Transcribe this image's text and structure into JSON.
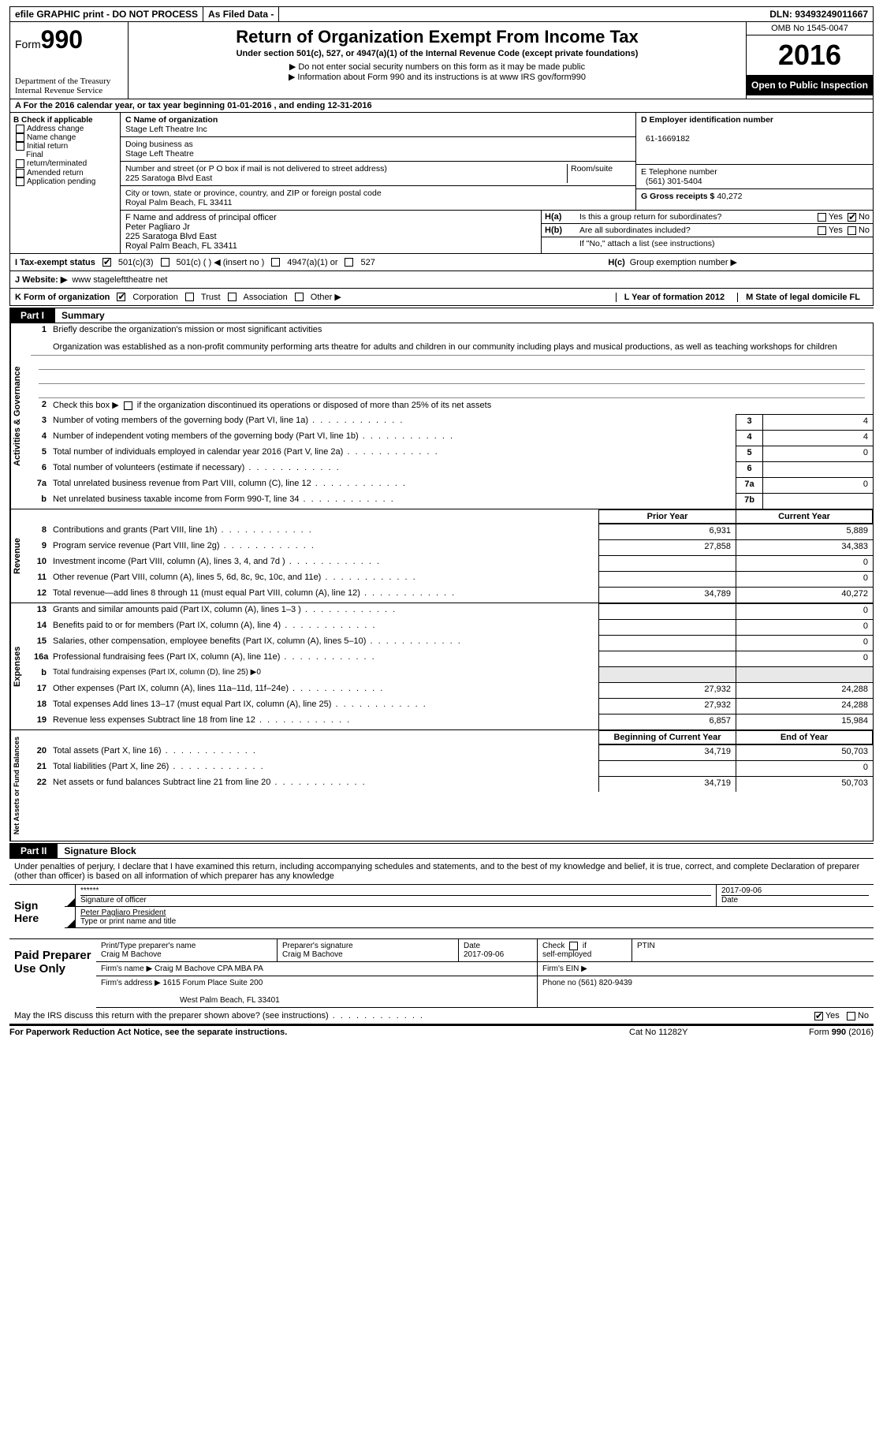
{
  "topbar": {
    "efile": "efile GRAPHIC print - DO NOT PROCESS",
    "asfiled": "As Filed Data -",
    "dln_label": "DLN:",
    "dln": "93493249011667"
  },
  "header": {
    "form_word": "Form",
    "form_num": "990",
    "dept1": "Department of the Treasury",
    "dept2": "Internal Revenue Service",
    "title": "Return of Organization Exempt From Income Tax",
    "subtitle": "Under section 501(c), 527, or 4947(a)(1) of the Internal Revenue Code (except private foundations)",
    "note1": "Do not enter social security numbers on this form as it may be made public",
    "note2": "Information about Form 990 and its instructions is at ",
    "url": "www IRS gov/form990",
    "omb": "OMB No  1545-0047",
    "year": "2016",
    "open": "Open to Public Inspection"
  },
  "rowA": "A   For the 2016 calendar year, or tax year beginning 01-01-2016    , and ending 12-31-2016",
  "colB": {
    "head": "B Check if applicable",
    "items": [
      "Address change",
      "Name change",
      "Initial return",
      "Final return/terminated",
      "Amended return",
      "Application pending"
    ]
  },
  "boxC": {
    "label": "C Name of organization",
    "name": "Stage Left Theatre Inc",
    "dba_label": "Doing business as",
    "dba": "Stage Left Theatre",
    "street_label": "Number and street (or P O  box if mail is not delivered to street address)",
    "room_label": "Room/suite",
    "street": "225 Saratoga Blvd East",
    "city_label": "City or town, state or province, country, and ZIP or foreign postal code",
    "city": "Royal Palm Beach, FL  33411"
  },
  "boxD": {
    "label": "D Employer identification number",
    "value": "61-1669182"
  },
  "boxE": {
    "label": "E Telephone number",
    "value": "(561) 301-5404"
  },
  "boxG": {
    "label": "G Gross receipts $",
    "value": "40,272"
  },
  "boxF": {
    "label": "F  Name and address of principal officer",
    "name": "Peter Pagliaro Jr",
    "street": "225 Saratoga Blvd East",
    "city": "Royal Palm Beach, FL  33411"
  },
  "boxH": {
    "a_label": "H(a)",
    "a_text": "Is this a group return for subordinates?",
    "a_yes": "Yes",
    "a_no": "No",
    "b_label": "H(b)",
    "b_text": "Are all subordinates included?",
    "b_yes": "Yes",
    "b_no": "No",
    "b_note": "If \"No,\" attach a list  (see instructions)",
    "c_label": "H(c)",
    "c_text": "Group exemption number ▶"
  },
  "rowI": {
    "label": "I   Tax-exempt status",
    "o1": "501(c)(3)",
    "o2": "501(c) (   ) ◀ (insert no )",
    "o3": "4947(a)(1) or",
    "o4": "527"
  },
  "rowJ": {
    "label": "J   Website: ▶",
    "value": "www stagelefttheatre net"
  },
  "rowK": {
    "label": "K Form of organization",
    "o1": "Corporation",
    "o2": "Trust",
    "o3": "Association",
    "o4": "Other ▶",
    "L": "L Year of formation  2012",
    "M": "M State of legal domicile  FL"
  },
  "part1": {
    "num": "Part I",
    "title": "Summary"
  },
  "summary": {
    "s1": {
      "vlabel": "Activities & Governance",
      "l1": "Briefly describe the organization's mission or most significant activities",
      "mission": "Organization was established as a non-profit community performing arts theatre for adults and children in our community including plays and musical productions, as well as teaching workshops for children",
      "l2": "Check this box ▶        if the organization discontinued its operations or disposed of more than 25% of its net assets",
      "lines": [
        {
          "n": "3",
          "d": "Number of voting members of the governing body (Part VI, line 1a)",
          "bn": "3",
          "v": "4"
        },
        {
          "n": "4",
          "d": "Number of independent voting members of the governing body (Part VI, line 1b)",
          "bn": "4",
          "v": "4"
        },
        {
          "n": "5",
          "d": "Total number of individuals employed in calendar year 2016 (Part V, line 2a)",
          "bn": "5",
          "v": "0"
        },
        {
          "n": "6",
          "d": "Total number of volunteers (estimate if necessary)",
          "bn": "6",
          "v": ""
        },
        {
          "n": "7a",
          "d": "Total unrelated business revenue from Part VIII, column (C), line 12",
          "bn": "7a",
          "v": "0"
        },
        {
          "n": "b",
          "d": "Net unrelated business taxable income from Form 990-T, line 34",
          "bn": "7b",
          "v": ""
        }
      ]
    },
    "head_prior": "Prior Year",
    "head_current": "Current Year",
    "revenue_label": "Revenue",
    "revenue": [
      {
        "n": "8",
        "d": "Contributions and grants (Part VIII, line 1h)",
        "p": "6,931",
        "c": "5,889"
      },
      {
        "n": "9",
        "d": "Program service revenue (Part VIII, line 2g)",
        "p": "27,858",
        "c": "34,383"
      },
      {
        "n": "10",
        "d": "Investment income (Part VIII, column (A), lines 3, 4, and 7d )",
        "p": "",
        "c": "0"
      },
      {
        "n": "11",
        "d": "Other revenue (Part VIII, column (A), lines 5, 6d, 8c, 9c, 10c, and 11e)",
        "p": "",
        "c": "0"
      },
      {
        "n": "12",
        "d": "Total revenue—add lines 8 through 11 (must equal Part VIII, column (A), line 12)",
        "p": "34,789",
        "c": "40,272"
      }
    ],
    "expenses_label": "Expenses",
    "expenses": [
      {
        "n": "13",
        "d": "Grants and similar amounts paid (Part IX, column (A), lines 1–3 )",
        "p": "",
        "c": "0"
      },
      {
        "n": "14",
        "d": "Benefits paid to or for members (Part IX, column (A), line 4)",
        "p": "",
        "c": "0"
      },
      {
        "n": "15",
        "d": "Salaries, other compensation, employee benefits (Part IX, column (A), lines 5–10)",
        "p": "",
        "c": "0"
      },
      {
        "n": "16a",
        "d": "Professional fundraising fees (Part IX, column (A), line 11e)",
        "p": "",
        "c": "0"
      },
      {
        "n": "b",
        "d": "Total fundraising expenses (Part IX, column (D), line 25) ▶0",
        "p": null,
        "c": null
      },
      {
        "n": "17",
        "d": "Other expenses (Part IX, column (A), lines 11a–11d, 11f–24e)",
        "p": "27,932",
        "c": "24,288"
      },
      {
        "n": "18",
        "d": "Total expenses  Add lines 13–17 (must equal Part IX, column (A), line 25)",
        "p": "27,932",
        "c": "24,288"
      },
      {
        "n": "19",
        "d": "Revenue less expenses  Subtract line 18 from line 12",
        "p": "6,857",
        "c": "15,984"
      }
    ],
    "head_beg": "Beginning of Current Year",
    "head_end": "End of Year",
    "net_label": "Net Assets or Fund Balances",
    "net": [
      {
        "n": "20",
        "d": "Total assets (Part X, line 16)",
        "p": "34,719",
        "c": "50,703"
      },
      {
        "n": "21",
        "d": "Total liabilities (Part X, line 26)",
        "p": "",
        "c": "0"
      },
      {
        "n": "22",
        "d": "Net assets or fund balances  Subtract line 21 from line 20",
        "p": "34,719",
        "c": "50,703"
      }
    ]
  },
  "part2": {
    "num": "Part II",
    "title": "Signature Block"
  },
  "sig": {
    "declaration": "Under penalties of perjury, I declare that I have examined this return, including accompanying schedules and statements, and to the best of my knowledge and belief, it is true, correct, and complete  Declaration of preparer (other than officer) is based on all information of which preparer has any knowledge",
    "sign_here": "Sign Here",
    "stars": "******",
    "sig_label": "Signature of officer",
    "date": "2017-09-06",
    "date_label": "Date",
    "name": "Peter Pagliaro President",
    "name_label": "Type or print name and title"
  },
  "prep": {
    "label": "Paid Preparer Use Only",
    "h1": "Print/Type preparer's name",
    "v1": "Craig M Bachove",
    "h2": "Preparer's signature",
    "v2": "Craig M Bachove",
    "h3": "Date",
    "v3": "2017-09-06",
    "h4": "Check         if self-employed",
    "h5": "PTIN",
    "firm_name_label": "Firm's name    ▶",
    "firm_name": "Craig M Bachove CPA MBA PA",
    "firm_ein_label": "Firm's EIN ▶",
    "firm_addr_label": "Firm's address ▶",
    "firm_addr1": "1615 Forum Place Suite 200",
    "firm_addr2": "West Palm Beach, FL  33401",
    "phone_label": "Phone no ",
    "phone": "(561) 820-9439"
  },
  "irs_discuss": "May the IRS discuss this return with the preparer shown above? (see instructions)",
  "irs_yes": "Yes",
  "irs_no": "No",
  "footer": {
    "left": "For Paperwork Reduction Act Notice, see the separate instructions.",
    "center": "Cat No  11282Y",
    "right": "Form 990 (2016)"
  }
}
